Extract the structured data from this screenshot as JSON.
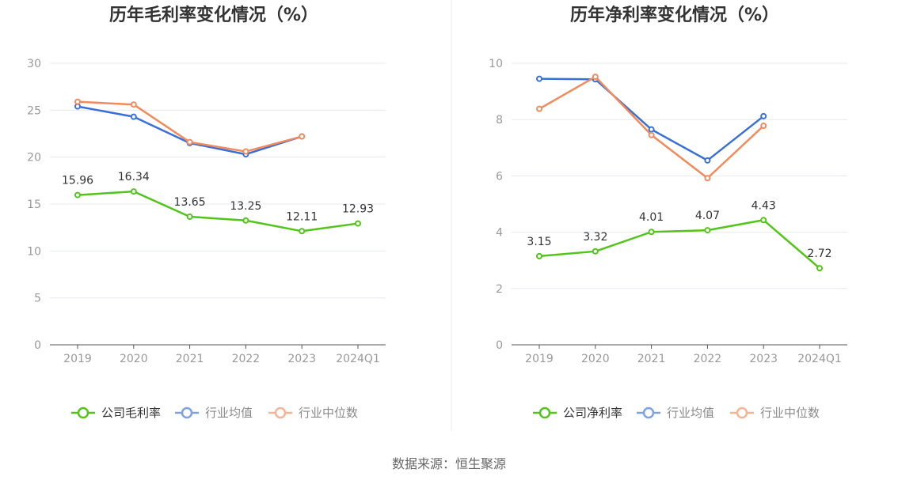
{
  "footer": {
    "source": "数据来源：恒生聚源"
  },
  "chart_data": [
    {
      "type": "line",
      "title": "历年毛利率变化情况（%）",
      "categories": [
        "2019",
        "2020",
        "2021",
        "2022",
        "2023",
        "2024Q1"
      ],
      "ylim": [
        0,
        30
      ],
      "yticks": [
        0,
        5,
        10,
        15,
        20,
        25,
        30
      ],
      "grid": true,
      "legend_position": "bottom",
      "series": [
        {
          "name": "公司毛利率",
          "color": "#52c41a",
          "values": [
            15.96,
            16.34,
            13.65,
            13.25,
            12.11,
            12.93
          ],
          "labels": [
            "15.96",
            "16.34",
            "13.65",
            "13.25",
            "12.11",
            "12.93"
          ]
        },
        {
          "name": "行业均值",
          "color": "#3a6fd8",
          "values": [
            25.4,
            24.3,
            21.5,
            20.3,
            22.2,
            null
          ]
        },
        {
          "name": "行业中位数",
          "color": "#f28b5c",
          "values": [
            25.9,
            25.6,
            21.6,
            20.6,
            22.2,
            null
          ]
        }
      ]
    },
    {
      "type": "line",
      "title": "历年净利率变化情况（%）",
      "categories": [
        "2019",
        "2020",
        "2021",
        "2022",
        "2023",
        "2024Q1"
      ],
      "ylim": [
        0,
        10
      ],
      "yticks": [
        0,
        2,
        4,
        6,
        8,
        10
      ],
      "grid": true,
      "legend_position": "bottom",
      "series": [
        {
          "name": "公司净利率",
          "color": "#52c41a",
          "values": [
            3.15,
            3.32,
            4.01,
            4.07,
            4.43,
            2.72
          ],
          "labels": [
            "3.15",
            "3.32",
            "4.01",
            "4.07",
            "4.43",
            "2.72"
          ]
        },
        {
          "name": "行业均值",
          "color": "#3a6fd8",
          "values": [
            9.45,
            9.43,
            7.65,
            6.55,
            8.12,
            null
          ]
        },
        {
          "name": "行业中位数",
          "color": "#f28b5c",
          "values": [
            8.38,
            9.52,
            7.45,
            5.92,
            7.78,
            null
          ]
        }
      ]
    }
  ]
}
